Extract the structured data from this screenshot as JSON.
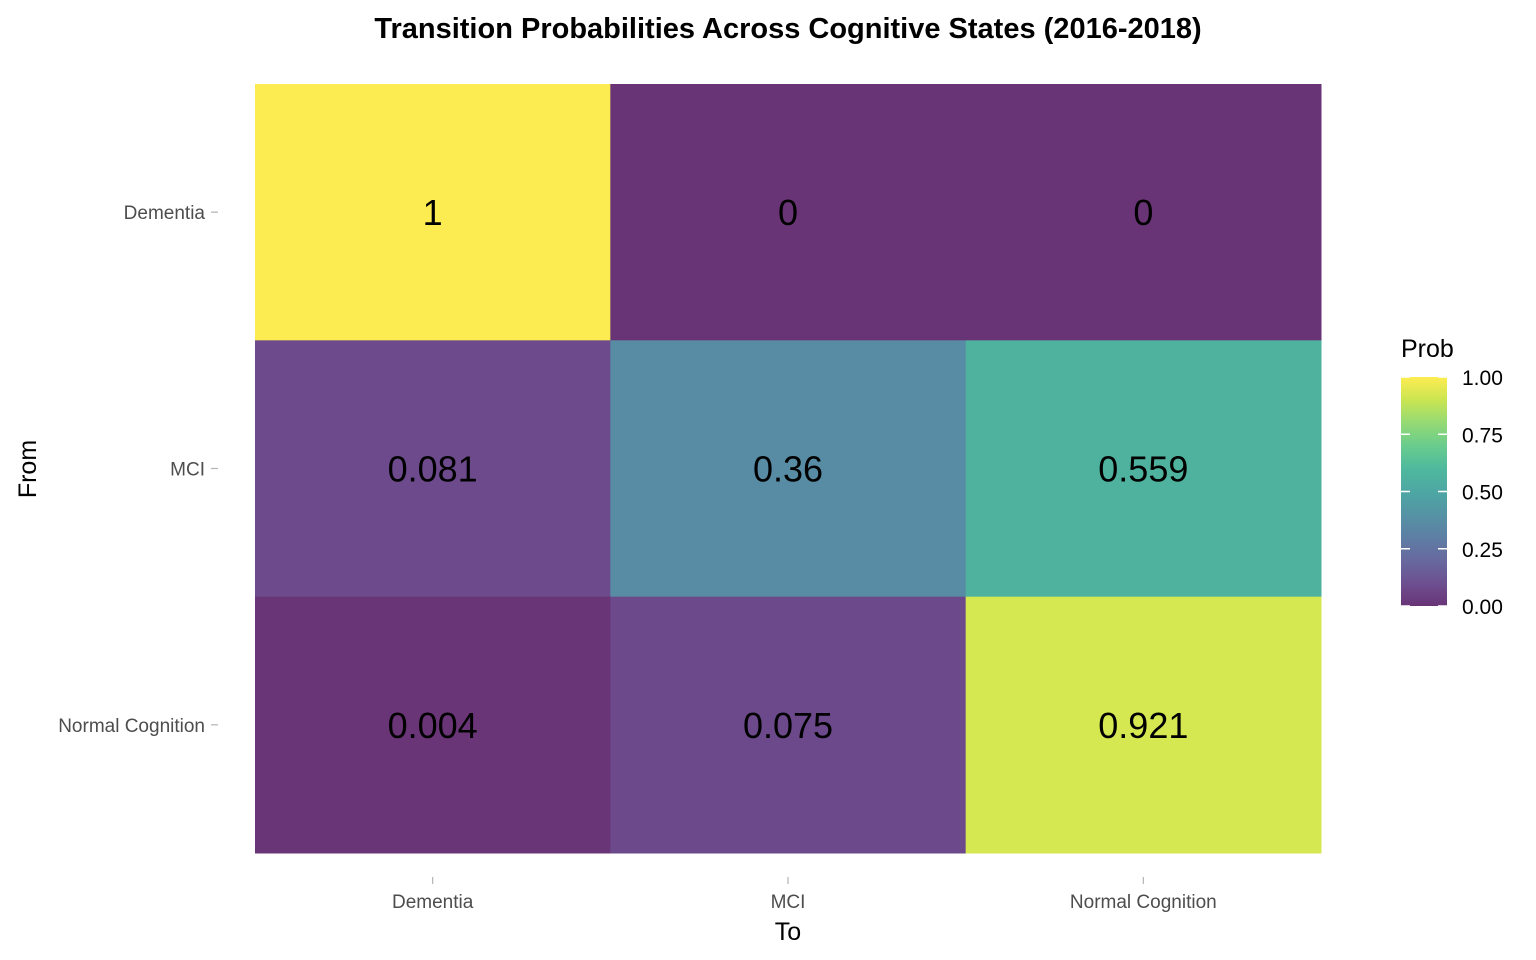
{
  "chart_data": {
    "type": "heatmap",
    "title": "Transition Probabilities Across Cognitive States (2016-2018)",
    "xlabel": "To",
    "ylabel": "From",
    "x_categories": [
      "Dementia",
      "MCI",
      "Normal Cognition"
    ],
    "y_categories": [
      "Dementia",
      "MCI",
      "Normal Cognition"
    ],
    "cells": [
      {
        "from": "Dementia",
        "to": "Dementia",
        "value": 1,
        "label": "1"
      },
      {
        "from": "Dementia",
        "to": "MCI",
        "value": 0,
        "label": "0"
      },
      {
        "from": "Dementia",
        "to": "Normal Cognition",
        "value": 0,
        "label": "0"
      },
      {
        "from": "MCI",
        "to": "Dementia",
        "value": 0.081,
        "label": "0.081"
      },
      {
        "from": "MCI",
        "to": "MCI",
        "value": 0.36,
        "label": "0.36"
      },
      {
        "from": "MCI",
        "to": "Normal Cognition",
        "value": 0.559,
        "label": "0.559"
      },
      {
        "from": "Normal Cognition",
        "to": "Dementia",
        "value": 0.004,
        "label": "0.004"
      },
      {
        "from": "Normal Cognition",
        "to": "MCI",
        "value": 0.075,
        "label": "0.075"
      },
      {
        "from": "Normal Cognition",
        "to": "Normal Cognition",
        "value": 0.921,
        "label": "0.921"
      }
    ],
    "legend": {
      "title": "Prob",
      "ticks": [
        "0.00",
        "0.25",
        "0.50",
        "0.75",
        "1.00"
      ],
      "range": [
        0,
        1
      ],
      "position": "right"
    },
    "colormap": "viridis",
    "tile_alpha": 0.8,
    "grid": false
  }
}
